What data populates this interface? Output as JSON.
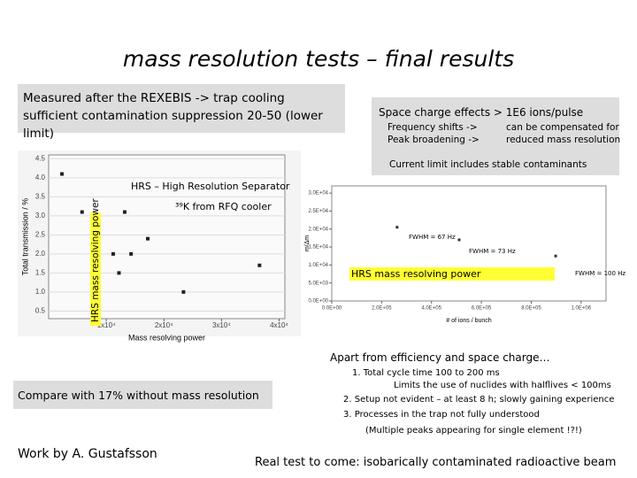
{
  "title": "mass resolution tests – final results",
  "left_box": "Measured after the REXEBIS -> trap cooling sufficient contamination suppression 20-50 (lower limit)",
  "right_box": {
    "heading": "Space charge effects > 1E6 ions/pulse",
    "rows": [
      [
        "Frequency shifts ->",
        "can be compensated for"
      ],
      [
        "Peak broadening ->",
        "reduced mass resolution"
      ]
    ],
    "note": "Current limit includes stable contaminants"
  },
  "chart_data": [
    {
      "type": "scatter",
      "xlabel": "Mass resolving power",
      "ylabel": "Total transmission / %",
      "x": [
        2300,
        5800,
        13200,
        11200,
        14300,
        17200,
        12200,
        23400,
        36600
      ],
      "values": [
        4.1,
        3.1,
        3.1,
        2.0,
        2.0,
        2.4,
        1.5,
        1.0,
        1.7
      ],
      "color": "#222222",
      "xlim": [
        0,
        41000
      ],
      "xticks": [
        {
          "value": 10000,
          "label": "1x10⁴"
        },
        {
          "value": 20000,
          "label": "2x10⁴"
        },
        {
          "value": 30000,
          "label": "3x10⁴"
        },
        {
          "value": 40000,
          "label": "4x10⁴"
        }
      ],
      "ylim": [
        0.3,
        4.6
      ],
      "yticks": [
        0.5,
        {
          "value": 1,
          "label": "1.0"
        },
        1.5,
        {
          "value": 2,
          "label": "2.0"
        },
        2.5,
        {
          "value": 3,
          "label": "3.0"
        },
        3.5,
        {
          "value": 4,
          "label": "4.0"
        },
        4.5
      ],
      "grid": true,
      "annotations": [
        "HRS – High Resolution Separator",
        "³⁹K from RFQ cooler",
        "HRS mass resolving power"
      ]
    },
    {
      "type": "scatter",
      "xlabel": "# of ions / bunch",
      "ylabel": "m/Δm",
      "x": [
        262000,
        511000,
        898000
      ],
      "values": [
        20500,
        17000,
        12500
      ],
      "color": "#333333",
      "xlim": [
        0,
        1100000
      ],
      "xticks": [
        {
          "value": 0,
          "label": "0.0E+00"
        },
        {
          "value": 200000,
          "label": "2.0E+05"
        },
        {
          "value": 400000,
          "label": "4.0E+05"
        },
        {
          "value": 600000,
          "label": "6.0E+05"
        },
        {
          "value": 800000,
          "label": "8.0E+05"
        },
        {
          "value": 1000000,
          "label": "1.0E+06"
        }
      ],
      "ylim": [
        0,
        32000
      ],
      "yticks": [
        {
          "value": 0,
          "label": "0.0E+00"
        },
        {
          "value": 5000,
          "label": "5.0E+03"
        },
        {
          "value": 10000,
          "label": "1.0E+04"
        },
        {
          "value": 15000,
          "label": "1.5E+04"
        },
        {
          "value": 20000,
          "label": "2.0E+04"
        },
        {
          "value": 25000,
          "label": "2.5E+04"
        },
        {
          "value": 30000,
          "label": "3.0E+04"
        }
      ],
      "grid": false,
      "annotations": [
        "FWHM = 67 Hz",
        "FWHM = 73 Hz",
        "FWHM = 100 Hz",
        "HRS mass resolving power"
      ]
    }
  ],
  "compare": "Compare with 17% without mass resolution",
  "credit": "Work by A. Gustafsson",
  "apart": {
    "heading": "Apart from efficiency and space charge…",
    "items": [
      "1. Total cycle time 100 to 200 ms",
      "Limits the use of nuclides with halflives < 100ms",
      "2. Setup not evident – at least 8 h; slowly gaining experience",
      "3. Processes in the trap not fully understood",
      "(Multiple peaks appearing for single element !?!)"
    ]
  },
  "footer": "Real test to come: isobarically contaminated radioactive beam"
}
